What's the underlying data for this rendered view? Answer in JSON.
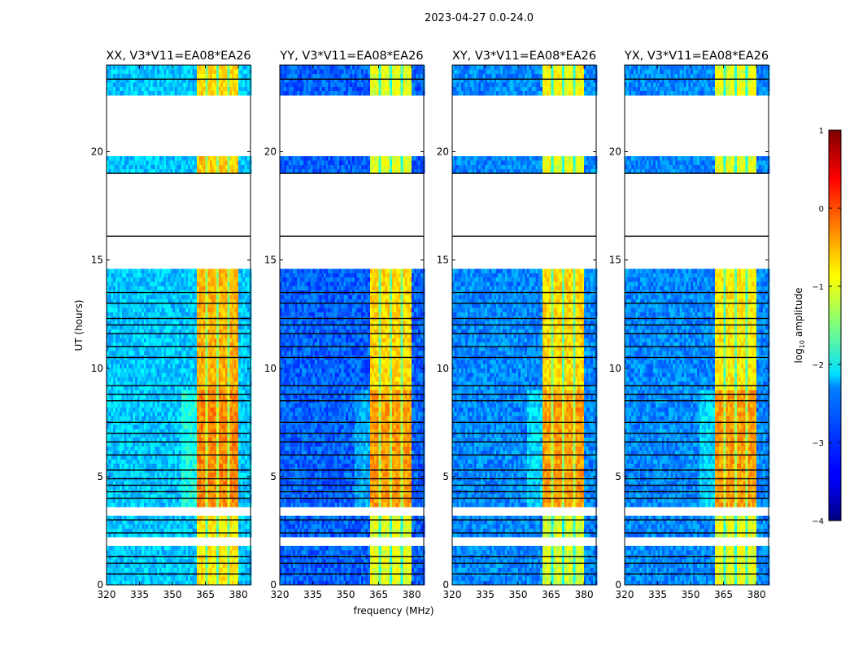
{
  "chart_data": {
    "type": "heatmap",
    "suptitle": "2023-04-27 0.0-24.0",
    "xlabel": "frequency (MHz)",
    "ylabel": "UT (hours)",
    "xlim": [
      320,
      385.5
    ],
    "ylim": [
      0,
      24
    ],
    "xticks": [
      320,
      335,
      350,
      365,
      380
    ],
    "yticks": [
      0,
      5,
      10,
      15,
      20
    ],
    "colormap": "jet",
    "colorbar": {
      "label_prefix": "log",
      "label_sub": "10",
      "label_suffix": " amplitude",
      "range": [
        -4,
        1
      ],
      "ticks": [
        1,
        0,
        -1,
        -2,
        -3,
        -4
      ],
      "tick_labels": [
        "1",
        "0",
        "−1",
        "−2",
        "−3",
        "−4"
      ]
    },
    "rfi_band_mhz": [
      361,
      380
    ],
    "rfi_subband_gaps_mhz": [
      365.5,
      370.5,
      375.5
    ],
    "flagged_time_ranges_hours": [
      [
        3.3,
        3.6
      ],
      [
        1.85,
        2.1
      ],
      [
        8.95,
        9.05
      ],
      [
        14.5,
        16.95
      ],
      [
        17.05,
        19.0
      ],
      [
        19.7,
        20.95
      ],
      [
        21.05,
        22.6
      ],
      [
        23.3,
        23.4
      ]
    ],
    "dark_time_lines_hours": [
      0.5,
      1.0,
      1.3,
      2.4,
      3.0,
      4.0,
      4.3,
      4.6,
      4.9,
      5.3,
      6.0,
      6.6,
      7.0,
      7.5,
      8.5,
      8.8,
      9.2,
      10.5,
      11.0,
      11.6,
      12.0,
      12.3,
      13.0,
      13.5,
      16.1,
      19.0,
      23.35
    ],
    "time_blocks": [
      {
        "from": 0,
        "to": 3.3,
        "band_level": [
          -0.8,
          -1.0,
          -1.1,
          -1.0
        ]
      },
      {
        "from": 3.6,
        "to": 9.0,
        "band_level": [
          -0.3,
          -0.4,
          -0.4,
          -0.4
        ]
      },
      {
        "from": 9.0,
        "to": 14.5,
        "band_level": [
          -0.5,
          -0.7,
          -0.7,
          -0.8
        ]
      },
      {
        "from": 16.95,
        "to": 17.05,
        "band_level": [
          -0.5,
          -0.8,
          -0.8,
          -0.8
        ]
      },
      {
        "from": 19.0,
        "to": 19.7,
        "band_level": [
          -0.6,
          -1.0,
          -1.0,
          -1.0
        ]
      },
      {
        "from": 20.95,
        "to": 21.05,
        "band_level": [
          -0.8,
          -1.0,
          -1.0,
          -1.0
        ]
      },
      {
        "from": 22.6,
        "to": 24,
        "band_level": [
          -0.7,
          -1.0,
          -0.9,
          -1.0
        ]
      }
    ],
    "panels": [
      {
        "title": "XX, V3*V11=EA08*EA26",
        "background_level": -2.4
      },
      {
        "title": "YY, V3*V11=EA08*EA26",
        "background_level": -2.9
      },
      {
        "title": "XY, V3*V11=EA08*EA26",
        "background_level": -2.7
      },
      {
        "title": "YX, V3*V11=EA08*EA26",
        "background_level": -2.7
      }
    ]
  }
}
